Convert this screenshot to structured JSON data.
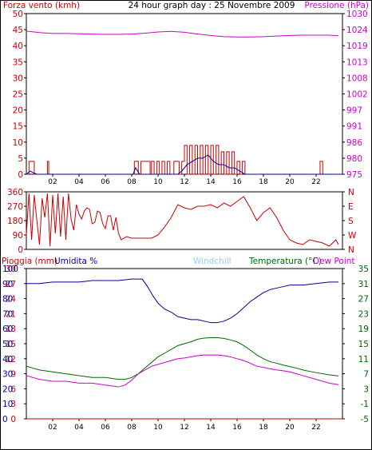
{
  "colors": {
    "red": "#cc0000",
    "magenta": "#cc00cc",
    "blue": "#000099",
    "green": "#006600",
    "light_blue": "#99ccff",
    "frame": "#000000",
    "background": "#ffffff"
  },
  "chart_data": [
    {
      "type": "line",
      "title": "24 hour graph day : 25 Novembre 2009",
      "left_axis_label": "Forza vento (kmh)",
      "right_axis_label": "Pressione (hPa)",
      "x_ticks": [
        "02",
        "04",
        "06",
        "08",
        "10",
        "12",
        "14",
        "16",
        "18",
        "20",
        "22"
      ],
      "xlim": [
        0,
        24
      ],
      "left_ticks": [
        "0",
        "5",
        "10",
        "15",
        "20",
        "25",
        "30",
        "35",
        "40",
        "45",
        "50"
      ],
      "left_ylim": [
        0,
        50
      ],
      "right_ticks": [
        "975",
        "980",
        "986",
        "991",
        "997",
        "1002",
        "1008",
        "1013",
        "1019",
        "1024",
        "1030"
      ],
      "right_ylim": [
        975,
        1030
      ],
      "series": [
        {
          "key": "pressure",
          "axis": "right",
          "color": "magenta",
          "x": [
            0,
            1,
            2,
            3,
            4,
            5,
            6,
            7,
            8,
            9,
            10,
            11,
            12,
            13,
            14,
            15,
            16,
            17,
            18,
            19,
            20,
            21,
            22,
            23,
            23.7
          ],
          "y": [
            1024,
            1023.5,
            1023.2,
            1023.2,
            1023.1,
            1023,
            1022.9,
            1022.9,
            1023,
            1023.3,
            1023.7,
            1023.9,
            1023.6,
            1023,
            1022.5,
            1022.1,
            1022,
            1022,
            1022.1,
            1022.3,
            1022.5,
            1022.6,
            1022.6,
            1022.6,
            1022.4
          ]
        },
        {
          "key": "wind_gust",
          "axis": "left",
          "color": "red",
          "style": "steps",
          "x": [
            0,
            0.2,
            0.3,
            0.6,
            1.6,
            1.7,
            8.2,
            8.5,
            8.7,
            9.4,
            9.5,
            9.7,
            9.9,
            10.1,
            10.3,
            10.5,
            10.7,
            10.9,
            11.2,
            11.6,
            11.8,
            12.0,
            12.2,
            12.4,
            12.6,
            12.8,
            13.0,
            13.2,
            13.4,
            13.6,
            13.8,
            14.0,
            14.2,
            14.4,
            14.6,
            14.8,
            15.0,
            15.2,
            15.4,
            15.6,
            15.8,
            16.0,
            16.2,
            16.4,
            16.6,
            17.0,
            22.3,
            22.5
          ],
          "y": [
            0,
            4,
            4,
            0,
            4,
            0,
            4,
            0,
            4,
            0,
            4,
            0,
            4,
            0,
            4,
            0,
            4,
            0,
            4,
            0,
            4,
            9,
            0,
            9,
            0,
            9,
            0,
            9,
            0,
            9,
            0,
            9,
            0,
            9,
            0,
            7,
            0,
            7,
            0,
            7,
            0,
            4,
            0,
            4,
            0,
            0,
            4,
            0
          ]
        },
        {
          "key": "wind_avg",
          "axis": "left",
          "color": "blue",
          "x": [
            0,
            0.3,
            0.5,
            0.8,
            8.1,
            8.3,
            8.6,
            11.5,
            11.8,
            12.2,
            12.6,
            13.0,
            13.4,
            13.8,
            14.2,
            14.6,
            15.0,
            15.4,
            15.8,
            16.2,
            16.6,
            17,
            24
          ],
          "y": [
            0,
            1,
            0.5,
            0,
            0,
            2,
            0,
            0,
            1,
            3,
            4,
            5,
            5,
            6,
            4,
            3,
            3,
            2,
            2,
            1,
            0,
            0,
            0
          ]
        }
      ]
    },
    {
      "type": "scatter",
      "left_ticks": [
        "0",
        "90",
        "180",
        "270",
        "360"
      ],
      "left_ylim": [
        0,
        360
      ],
      "right_ticks": [
        "N",
        "W",
        "S",
        "E",
        "N"
      ],
      "series": [
        {
          "key": "wind_dir",
          "color": "red",
          "x": [
            0,
            0.2,
            0.4,
            0.6,
            0.8,
            1,
            1.2,
            1.4,
            1.6,
            1.8,
            2,
            2.2,
            2.4,
            2.6,
            2.8,
            3,
            3.2,
            3.4,
            3.6,
            3.8,
            4,
            4.2,
            4.4,
            4.6,
            4.8,
            5,
            5.2,
            5.4,
            5.6,
            5.8,
            6,
            6.2,
            6.4,
            6.6,
            6.8,
            7,
            7.2,
            7.4,
            7.6,
            7.8,
            8,
            8.5,
            9,
            9.5,
            10,
            10.5,
            11,
            11.5,
            12,
            12.5,
            13,
            13.5,
            14,
            14.5,
            15,
            15.5,
            16,
            16.5,
            17,
            17.5,
            18,
            18.5,
            19,
            19.5,
            20,
            20.5,
            21,
            21.5,
            22,
            22.5,
            23,
            23.5,
            23.7
          ],
          "y": [
            90,
            350,
            60,
            340,
            180,
            30,
            320,
            200,
            350,
            20,
            340,
            100,
            350,
            80,
            330,
            60,
            350,
            190,
            120,
            280,
            220,
            190,
            240,
            260,
            250,
            160,
            170,
            240,
            230,
            160,
            130,
            210,
            210,
            120,
            200,
            100,
            60,
            70,
            80,
            75,
            70,
            70,
            70,
            70,
            90,
            140,
            200,
            280,
            260,
            250,
            270,
            270,
            280,
            260,
            290,
            270,
            300,
            330,
            260,
            180,
            230,
            260,
            200,
            120,
            60,
            40,
            30,
            60,
            50,
            40,
            20,
            60,
            30
          ]
        }
      ]
    },
    {
      "type": "line",
      "left_axis_label": "Pioggia (mm)",
      "humidity_label": "Umidita %",
      "windchill_label": "Windchill",
      "temp_label": "Temperatura (°C)",
      "dewpoint_label": "Dew Point",
      "xlim": [
        0,
        24
      ],
      "rain_ticks": [
        "0",
        "3",
        "6",
        "9",
        "12",
        "15",
        "18",
        "21",
        "24",
        "27",
        "30"
      ],
      "rain_ylim": [
        0,
        30
      ],
      "humidity_ticks": [
        "0",
        "10",
        "20",
        "30",
        "40",
        "50",
        "60",
        "70",
        "80",
        "90",
        "100"
      ],
      "humidity_ylim": [
        0,
        100
      ],
      "temp_ticks": [
        "-5",
        "-1",
        "3",
        "7",
        "11",
        "15",
        "19",
        "23",
        "27",
        "31",
        "35"
      ],
      "temp_ylim": [
        -5,
        35
      ],
      "x_ticks": [
        "02",
        "04",
        "06",
        "08",
        "10",
        "12",
        "14",
        "16",
        "18",
        "20",
        "22"
      ],
      "series": [
        {
          "key": "humidity",
          "axis": "humidity",
          "color": "blue",
          "x": [
            0,
            1,
            2,
            3,
            4,
            5,
            6,
            7,
            8,
            8.8,
            9.2,
            9.6,
            10,
            10.5,
            11,
            11.5,
            12,
            12.5,
            13,
            13.5,
            14,
            14.5,
            15,
            15.5,
            16,
            16.5,
            17,
            17.5,
            18,
            18.5,
            19,
            19.5,
            20,
            21,
            22,
            23,
            23.7
          ],
          "y": [
            90,
            90,
            91,
            91,
            91,
            92,
            92,
            92,
            93,
            93,
            88,
            82,
            77,
            73,
            71,
            68,
            67,
            66,
            66,
            65,
            64,
            64,
            65,
            67,
            70,
            74,
            78,
            81,
            84,
            86,
            87,
            88,
            89,
            89,
            90,
            91,
            91
          ]
        },
        {
          "key": "temperature",
          "axis": "temp",
          "color": "green",
          "x": [
            0,
            0.5,
            1,
            2,
            3,
            4,
            5,
            6,
            7,
            7.5,
            8,
            8.5,
            9,
            9.5,
            10,
            10.5,
            11,
            11.5,
            12,
            12.5,
            13,
            13.5,
            14,
            14.5,
            15,
            15.5,
            16,
            16.5,
            17,
            17.5,
            18,
            18.5,
            19,
            19.5,
            20,
            20.5,
            21,
            22,
            23,
            23.7
          ],
          "y": [
            9,
            8.5,
            8,
            7.5,
            7,
            6.5,
            6,
            6,
            5.5,
            5.5,
            6,
            7,
            8.5,
            10,
            11.5,
            12.5,
            13.5,
            14.5,
            15,
            15.5,
            16.2,
            16.5,
            16.6,
            16.6,
            16.4,
            16,
            15.5,
            14.5,
            13.3,
            12,
            11,
            10.2,
            9.8,
            9.3,
            8.9,
            8.5,
            8,
            7.3,
            6.7,
            6.4
          ]
        },
        {
          "key": "dewpoint",
          "axis": "temp",
          "color": "magenta",
          "x": [
            0,
            0.5,
            1,
            2,
            3,
            4,
            5,
            6,
            7,
            7.5,
            8,
            8.5,
            9,
            9.5,
            10,
            10.5,
            11,
            11.5,
            12,
            12.5,
            13,
            13.5,
            14,
            14.5,
            15,
            15.5,
            16,
            16.5,
            17,
            17.5,
            18,
            18.5,
            19,
            19.5,
            20,
            20.5,
            21,
            22,
            23,
            23.7
          ],
          "y": [
            6.5,
            6,
            5.5,
            5,
            5,
            4.5,
            4.5,
            4,
            3.5,
            4,
            5.3,
            7,
            8,
            9,
            9.5,
            10,
            10.5,
            11,
            11.2,
            11.5,
            11.8,
            12,
            12,
            12,
            11.8,
            11.5,
            11,
            10.5,
            9.8,
            9,
            8.7,
            8.3,
            8,
            7.8,
            7.5,
            7,
            6.5,
            5.5,
            4.5,
            4.1
          ]
        },
        {
          "key": "rain",
          "axis": "rain",
          "color": "red",
          "x": [
            0,
            24
          ],
          "y": [
            0,
            0
          ]
        }
      ]
    }
  ]
}
